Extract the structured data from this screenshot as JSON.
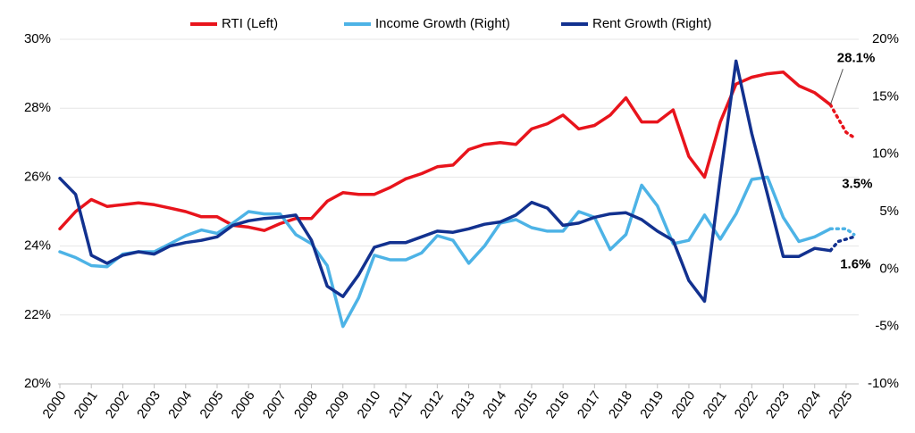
{
  "chart_data": {
    "type": "line",
    "x": [
      2000,
      2000.5,
      2001,
      2001.5,
      2002,
      2002.5,
      2003,
      2003.5,
      2004,
      2004.5,
      2005,
      2005.5,
      2006,
      2006.5,
      2007,
      2007.5,
      2008,
      2008.5,
      2009,
      2009.5,
      2010,
      2010.5,
      2011,
      2011.5,
      2012,
      2012.5,
      2013,
      2013.5,
      2014,
      2014.5,
      2015,
      2015.5,
      2016,
      2016.5,
      2017,
      2017.5,
      2018,
      2018.5,
      2019,
      2019.5,
      2020,
      2020.5,
      2021,
      2021.5,
      2022,
      2022.5,
      2023,
      2023.5,
      2024,
      2024.5,
      2024.75,
      2025,
      2025.25
    ],
    "series": [
      {
        "name": "RTI (Left)",
        "color": "#e8141c",
        "axis": "y",
        "values": [
          24.5,
          25.0,
          25.35,
          25.15,
          25.2,
          25.25,
          25.2,
          25.1,
          25.0,
          24.85,
          24.85,
          24.6,
          24.55,
          24.45,
          24.65,
          24.8,
          24.8,
          25.3,
          25.55,
          25.5,
          25.5,
          25.7,
          25.95,
          26.1,
          26.3,
          26.35,
          26.8,
          26.95,
          27.0,
          26.95,
          27.4,
          27.55,
          27.8,
          27.4,
          27.5,
          27.8,
          28.3,
          27.6,
          27.6,
          27.95,
          26.6,
          26.0,
          27.6,
          28.7,
          28.9,
          29.0,
          29.05,
          28.65,
          28.45,
          28.1,
          null,
          null,
          null
        ],
        "forecast": [
          null,
          null,
          null,
          null,
          null,
          null,
          null,
          null,
          null,
          null,
          null,
          null,
          null,
          null,
          null,
          null,
          null,
          null,
          null,
          null,
          null,
          null,
          null,
          null,
          null,
          null,
          null,
          null,
          null,
          null,
          null,
          null,
          null,
          null,
          null,
          null,
          null,
          null,
          null,
          null,
          null,
          null,
          null,
          null,
          null,
          null,
          null,
          null,
          null,
          28.1,
          27.7,
          27.3,
          27.15
        ],
        "value_labels": [
          null,
          null,
          null,
          null,
          null,
          null,
          null,
          null,
          null,
          null,
          null,
          null,
          null,
          null,
          null,
          null,
          null,
          null,
          null,
          null,
          null,
          null,
          null,
          null,
          null,
          null,
          null,
          null,
          null,
          null,
          null,
          null,
          null,
          null,
          null,
          null,
          null,
          null,
          null,
          null,
          null,
          null,
          null,
          null,
          null,
          null,
          null,
          null,
          null,
          "28.1%",
          null,
          null,
          null
        ]
      },
      {
        "name": "Income Growth (Right)",
        "color": "#4db3e6",
        "axis": "y2",
        "values": [
          1.5,
          1.0,
          0.3,
          0.2,
          1.3,
          1.5,
          1.5,
          2.2,
          2.9,
          3.4,
          3.1,
          4.0,
          5.0,
          4.8,
          4.8,
          3.0,
          2.2,
          0.3,
          -5.0,
          -2.5,
          1.2,
          0.8,
          0.8,
          1.4,
          2.9,
          2.5,
          0.5,
          2.0,
          4.0,
          4.3,
          3.6,
          3.3,
          3.3,
          5.0,
          4.5,
          1.7,
          3.0,
          7.3,
          5.5,
          2.2,
          2.5,
          4.7,
          2.6,
          4.8,
          7.8,
          8.0,
          4.5,
          2.4,
          2.8,
          3.5,
          null,
          null,
          null
        ],
        "forecast": [
          null,
          null,
          null,
          null,
          null,
          null,
          null,
          null,
          null,
          null,
          null,
          null,
          null,
          null,
          null,
          null,
          null,
          null,
          null,
          null,
          null,
          null,
          null,
          null,
          null,
          null,
          null,
          null,
          null,
          null,
          null,
          null,
          null,
          null,
          null,
          null,
          null,
          null,
          null,
          null,
          null,
          null,
          null,
          null,
          null,
          null,
          null,
          null,
          null,
          3.5,
          3.5,
          3.5,
          3.0
        ],
        "value_labels": [
          null,
          null,
          null,
          null,
          null,
          null,
          null,
          null,
          null,
          null,
          null,
          null,
          null,
          null,
          null,
          null,
          null,
          null,
          null,
          null,
          null,
          null,
          null,
          null,
          null,
          null,
          null,
          null,
          null,
          null,
          null,
          null,
          null,
          null,
          null,
          null,
          null,
          null,
          null,
          null,
          null,
          null,
          null,
          null,
          null,
          null,
          null,
          null,
          null,
          "3.5%",
          null,
          null,
          null
        ]
      },
      {
        "name": "Rent Growth (Right)",
        "color": "#12318f",
        "axis": "y2",
        "values": [
          7.9,
          6.5,
          1.2,
          0.5,
          1.2,
          1.5,
          1.3,
          2.0,
          2.3,
          2.5,
          2.8,
          3.8,
          4.2,
          4.4,
          4.5,
          4.7,
          2.5,
          -1.5,
          -2.4,
          -0.5,
          1.9,
          2.3,
          2.3,
          2.8,
          3.3,
          3.2,
          3.5,
          3.9,
          4.1,
          4.7,
          5.8,
          5.3,
          3.8,
          4.0,
          4.5,
          4.8,
          4.9,
          4.3,
          3.3,
          2.5,
          -1.0,
          -2.8,
          8.0,
          18.1,
          11.8,
          6.5,
          1.1,
          1.1,
          1.8,
          1.6,
          null,
          null,
          null
        ],
        "forecast": [
          null,
          null,
          null,
          null,
          null,
          null,
          null,
          null,
          null,
          null,
          null,
          null,
          null,
          null,
          null,
          null,
          null,
          null,
          null,
          null,
          null,
          null,
          null,
          null,
          null,
          null,
          null,
          null,
          null,
          null,
          null,
          null,
          null,
          null,
          null,
          null,
          null,
          null,
          null,
          null,
          null,
          null,
          null,
          null,
          null,
          null,
          null,
          null,
          null,
          1.6,
          2.4,
          2.6,
          2.8
        ],
        "value_labels": [
          null,
          null,
          null,
          null,
          null,
          null,
          null,
          null,
          null,
          null,
          null,
          null,
          null,
          null,
          null,
          null,
          null,
          null,
          null,
          null,
          null,
          null,
          null,
          null,
          null,
          null,
          null,
          null,
          null,
          null,
          null,
          null,
          null,
          null,
          null,
          null,
          null,
          null,
          null,
          null,
          null,
          null,
          null,
          null,
          null,
          null,
          null,
          null,
          null,
          "1.6%",
          null,
          null,
          null
        ]
      }
    ],
    "xlim": [
      2000,
      2025.4
    ],
    "xticks": [
      2000,
      2001,
      2002,
      2003,
      2004,
      2005,
      2006,
      2007,
      2008,
      2009,
      2010,
      2011,
      2012,
      2013,
      2014,
      2015,
      2016,
      2017,
      2018,
      2019,
      2020,
      2021,
      2022,
      2023,
      2024,
      2025
    ],
    "ylim": [
      20,
      30
    ],
    "yticks": [
      {
        "value": 20,
        "label": "20%"
      },
      {
        "value": 22,
        "label": "22%"
      },
      {
        "value": 24,
        "label": "24%"
      },
      {
        "value": 26,
        "label": "26%"
      },
      {
        "value": 28,
        "label": "28%"
      },
      {
        "value": 30,
        "label": "30%"
      }
    ],
    "y2lim": [
      -10,
      20
    ],
    "y2ticks": [
      {
        "value": -10,
        "label": "-10%"
      },
      {
        "value": -5,
        "label": "-5%"
      },
      {
        "value": 0,
        "label": "0%"
      },
      {
        "value": 5,
        "label": "5%"
      },
      {
        "value": 10,
        "label": "10%"
      },
      {
        "value": 15,
        "label": "15%"
      },
      {
        "value": 20,
        "label": "20%"
      }
    ],
    "grid": true,
    "legend": "top"
  }
}
